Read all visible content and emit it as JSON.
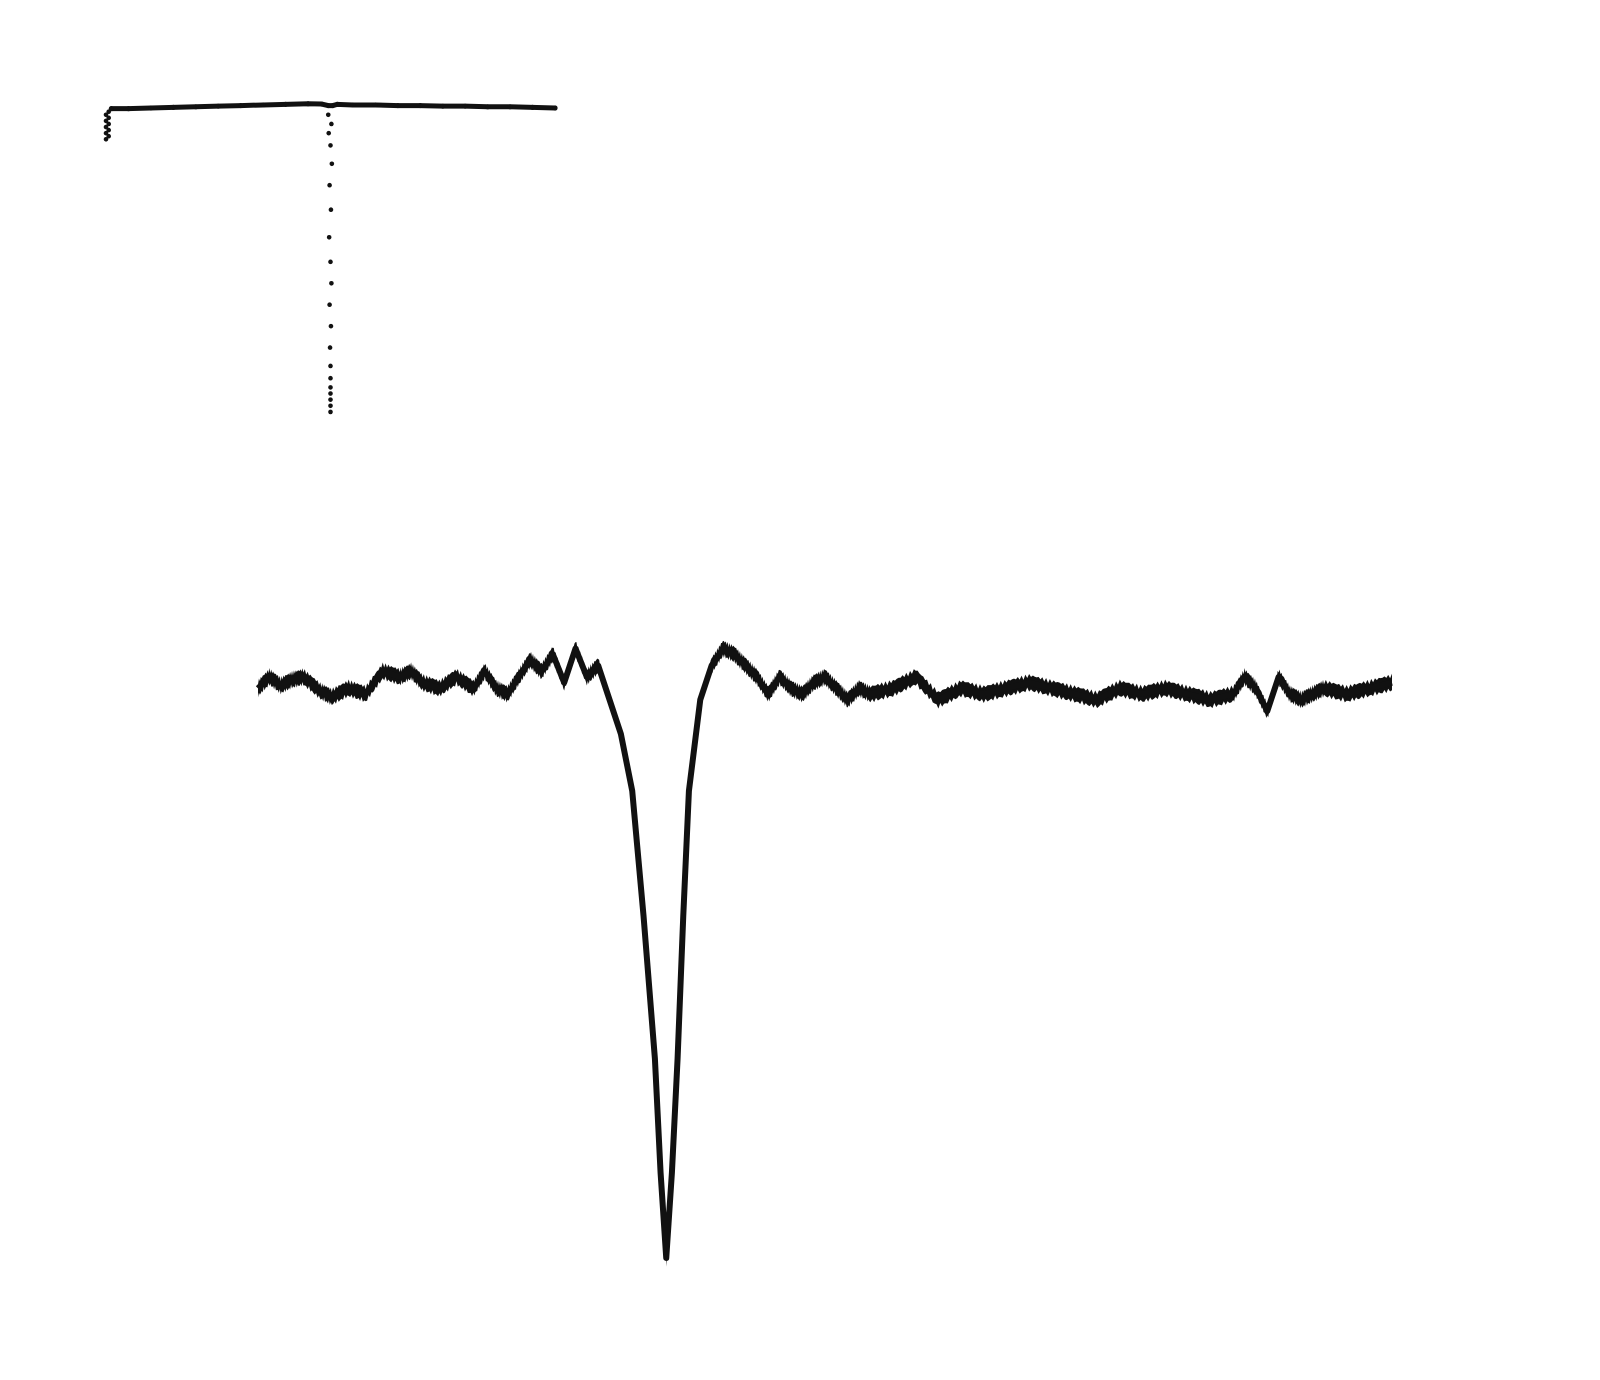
{
  "chart_data": [
    {
      "type": "scatter",
      "title": "",
      "xlabel": "",
      "ylabel": "",
      "axes_visible": false,
      "grid": false,
      "marker_color": "#111111",
      "x_range": [
        0,
        1
      ],
      "y_range": [
        -1.0,
        0.1
      ],
      "series": [
        {
          "points": [
            [
              0.0,
              -0.1
            ],
            [
              0.0,
              -0.08
            ],
            [
              0.0,
              -0.06
            ],
            [
              0.0,
              -0.04
            ],
            [
              0.0,
              -0.02
            ],
            [
              0.006,
              -0.09
            ],
            [
              0.006,
              -0.07
            ],
            [
              0.006,
              -0.05
            ],
            [
              0.006,
              -0.03
            ],
            [
              0.006,
              -0.01
            ],
            [
              0.012,
              0.0
            ],
            [
              0.05,
              0.0
            ],
            [
              0.1,
              0.002
            ],
            [
              0.15,
              0.004
            ],
            [
              0.2,
              0.006
            ],
            [
              0.25,
              0.008
            ],
            [
              0.3,
              0.01
            ],
            [
              0.35,
              0.012
            ],
            [
              0.4,
              0.014
            ],
            [
              0.45,
              0.016
            ],
            [
              0.48,
              0.015
            ],
            [
              0.495,
              0.01
            ],
            [
              0.495,
              -0.02
            ],
            [
              0.502,
              -0.05
            ],
            [
              0.496,
              -0.08
            ],
            [
              0.5,
              -0.12
            ],
            [
              0.503,
              -0.18
            ],
            [
              0.498,
              -0.25
            ],
            [
              0.501,
              -0.33
            ],
            [
              0.497,
              -0.42
            ],
            [
              0.5,
              -0.5
            ],
            [
              0.502,
              -0.57
            ],
            [
              0.498,
              -0.64
            ],
            [
              0.501,
              -0.71
            ],
            [
              0.499,
              -0.78
            ],
            [
              0.5,
              -0.84
            ],
            [
              0.5,
              -0.88
            ],
            [
              0.5,
              -0.91
            ],
            [
              0.5,
              -0.93
            ],
            [
              0.5,
              -0.95
            ],
            [
              0.5,
              -0.97
            ],
            [
              0.5,
              -0.99
            ],
            [
              0.505,
              0.01
            ],
            [
              0.515,
              0.014
            ],
            [
              0.55,
              0.012
            ],
            [
              0.6,
              0.012
            ],
            [
              0.65,
              0.01
            ],
            [
              0.7,
              0.01
            ],
            [
              0.75,
              0.008
            ],
            [
              0.8,
              0.008
            ],
            [
              0.85,
              0.006
            ],
            [
              0.9,
              0.006
            ],
            [
              0.95,
              0.004
            ],
            [
              1.0,
              0.002
            ]
          ]
        }
      ]
    },
    {
      "type": "line",
      "title": "",
      "xlabel": "",
      "ylabel": "",
      "axes_visible": false,
      "grid": false,
      "line_color": "#111111",
      "x_range": [
        0,
        1
      ],
      "y_range": [
        -1.0,
        0.12
      ],
      "series": [
        {
          "x": [
            0.0,
            0.01,
            0.02,
            0.03,
            0.04,
            0.055,
            0.065,
            0.08,
            0.095,
            0.11,
            0.125,
            0.135,
            0.145,
            0.16,
            0.175,
            0.19,
            0.2,
            0.21,
            0.22,
            0.23,
            0.24,
            0.25,
            0.26,
            0.27,
            0.28,
            0.29,
            0.3,
            0.31,
            0.32,
            0.33,
            0.34,
            0.35,
            0.355,
            0.36,
            0.365,
            0.37,
            0.375,
            0.38,
            0.39,
            0.4,
            0.41,
            0.42,
            0.43,
            0.44,
            0.45,
            0.46,
            0.47,
            0.48,
            0.49,
            0.5,
            0.51,
            0.52,
            0.53,
            0.54,
            0.56,
            0.58,
            0.6,
            0.62,
            0.64,
            0.66,
            0.68,
            0.7,
            0.72,
            0.74,
            0.76,
            0.78,
            0.8,
            0.82,
            0.84,
            0.86,
            0.87,
            0.88,
            0.89,
            0.9,
            0.91,
            0.92,
            0.93,
            0.94,
            0.96,
            0.98,
            1.0
          ],
          "y": [
            0.0,
            0.02,
            0.005,
            0.015,
            0.02,
            -0.005,
            -0.015,
            0.0,
            -0.01,
            0.03,
            0.02,
            0.03,
            0.01,
            0.0,
            0.02,
            0.0,
            0.03,
            0.0,
            -0.01,
            0.02,
            0.05,
            0.03,
            0.06,
            0.01,
            0.07,
            0.02,
            0.04,
            -0.02,
            -0.08,
            -0.18,
            -0.4,
            -0.65,
            -0.85,
            -1.0,
            -0.85,
            -0.65,
            -0.4,
            -0.18,
            -0.02,
            0.04,
            0.07,
            0.06,
            0.04,
            0.02,
            -0.01,
            0.02,
            0.0,
            -0.01,
            0.01,
            0.02,
            0.0,
            -0.02,
            0.0,
            -0.01,
            0.0,
            0.02,
            -0.02,
            0.0,
            -0.01,
            0.0,
            0.01,
            0.0,
            -0.01,
            -0.02,
            0.0,
            -0.01,
            0.0,
            -0.01,
            -0.02,
            -0.01,
            0.02,
            0.0,
            -0.04,
            0.02,
            -0.01,
            -0.02,
            -0.01,
            0.0,
            -0.01,
            0.0,
            0.01
          ]
        }
      ]
    }
  ]
}
